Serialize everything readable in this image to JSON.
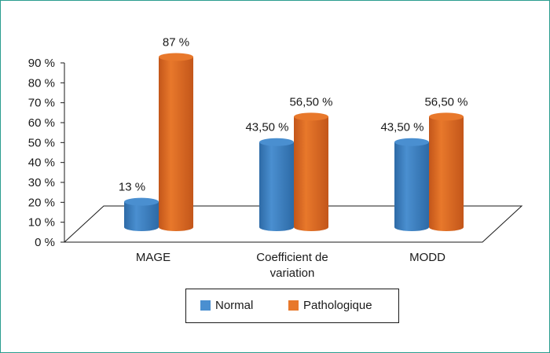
{
  "chart_data": {
    "type": "bar",
    "style": "3d-cylinder",
    "categories": [
      "MAGE",
      "Coefficient de\nvariation",
      "MODD"
    ],
    "series": [
      {
        "name": "Normal",
        "values": [
          13,
          43.5,
          43.5
        ],
        "labels": [
          "13 %",
          "43,50 %",
          "43,50 %"
        ],
        "color": "#4a8fd0",
        "color_dark": "#2d6aa6"
      },
      {
        "name": "Pathologique",
        "values": [
          87,
          56.5,
          56.5
        ],
        "labels": [
          "87 %",
          "56,50 %",
          "56,50 %"
        ],
        "color": "#e8782b",
        "color_dark": "#c3561a"
      }
    ],
    "ylim": [
      0,
      90
    ],
    "yticks": [
      "0 %",
      "10 %",
      "20 %",
      "30 %",
      "40 %",
      "50 %",
      "60 %",
      "70 %",
      "80 %",
      "90 %"
    ],
    "legend_position": "bottom",
    "grid": false
  },
  "colors": {
    "frame_border": "#2a9d8f",
    "text": "#1a1a1a"
  }
}
